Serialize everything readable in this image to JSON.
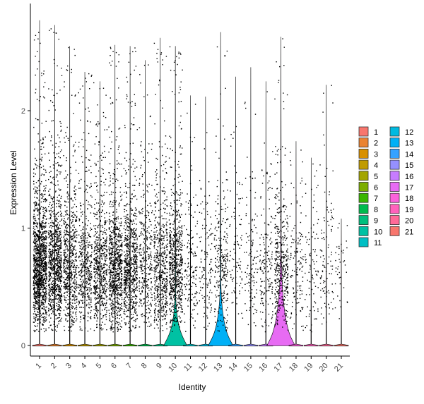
{
  "chart_data": {
    "type": "violin",
    "xlabel": "Identity",
    "ylabel": "Expression Level",
    "ylim": [
      -0.1,
      2.92
    ],
    "yticks": [
      0,
      1,
      2
    ],
    "grid": false,
    "legend_position": "right",
    "categories": [
      "1",
      "2",
      "3",
      "4",
      "5",
      "6",
      "7",
      "8",
      "9",
      "10",
      "11",
      "12",
      "13",
      "14",
      "15",
      "16",
      "17",
      "18",
      "19",
      "20",
      "21"
    ],
    "category_colors": [
      "#F8766D",
      "#EA8331",
      "#D89000",
      "#C09B00",
      "#A3A500",
      "#7CAE00",
      "#39B600",
      "#00BB4E",
      "#00BF7D",
      "#00C1A3",
      "#00BFC4",
      "#00BAE0",
      "#00B0F6",
      "#35A2FF",
      "#9590FF",
      "#C77CFF",
      "#E76BF3",
      "#FA62DB",
      "#FF62BC",
      "#FF6A98",
      "#F8766D"
    ],
    "legend_items": [
      "1",
      "2",
      "3",
      "4",
      "5",
      "6",
      "7",
      "8",
      "9",
      "10",
      "11",
      "12",
      "13",
      "14",
      "15",
      "16",
      "17",
      "18",
      "19",
      "20",
      "21"
    ],
    "max_values": [
      2.77,
      2.73,
      2.55,
      2.33,
      2.25,
      2.56,
      2.55,
      2.43,
      2.62,
      2.55,
      2.13,
      2.12,
      2.67,
      2.29,
      2.37,
      2.25,
      2.63,
      1.74,
      1.6,
      2.22,
      1.08
    ],
    "point_density": [
      1.0,
      0.72,
      0.48,
      0.36,
      0.46,
      0.62,
      0.58,
      0.26,
      0.42,
      0.52,
      0.12,
      0.1,
      0.2,
      0.07,
      0.09,
      0.13,
      0.32,
      0.1,
      0.07,
      0.08,
      0.03
    ],
    "violin_peaks": [
      0,
      0,
      0,
      0,
      0,
      0,
      0,
      0,
      0,
      0.45,
      0,
      0,
      0.55,
      0,
      0,
      0,
      0.8,
      0,
      0,
      0,
      0
    ]
  }
}
